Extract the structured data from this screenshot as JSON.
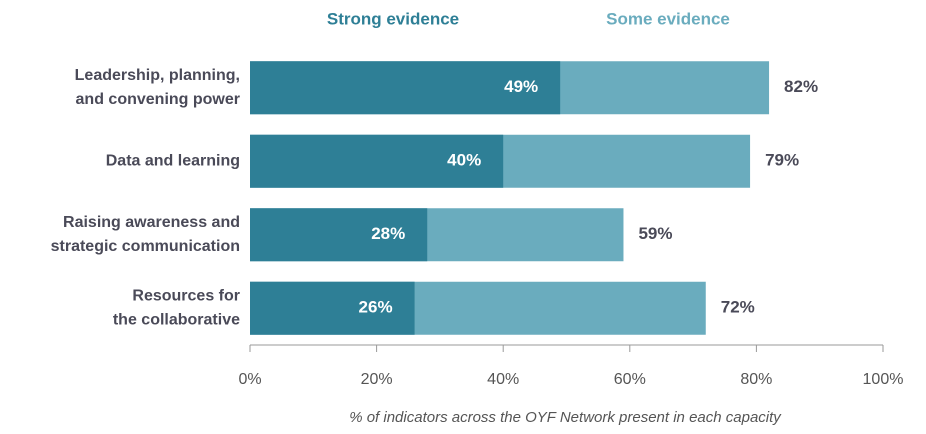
{
  "chart_data": {
    "type": "bar",
    "orientation": "horizontal",
    "overlap": true,
    "categories": [
      [
        "Leadership, planning,",
        "and convening power"
      ],
      [
        "Data and learning"
      ],
      [
        "Raising awareness and",
        "strategic communication"
      ],
      [
        "Resources for",
        "the collaborative"
      ]
    ],
    "series": [
      {
        "name": "Strong evidence",
        "color": "#2e7f96",
        "values": [
          49,
          40,
          28,
          26
        ],
        "value_labels": [
          "49%",
          "40%",
          "28%",
          "26%"
        ]
      },
      {
        "name": "Some evidence",
        "color": "#6aacbe",
        "values": [
          82,
          79,
          59,
          72
        ],
        "value_labels": [
          "82%",
          "79%",
          "59%",
          "72%"
        ]
      }
    ],
    "xlim": [
      0,
      100
    ],
    "xticks": [
      {
        "value": 0,
        "label": "0%"
      },
      {
        "value": 20,
        "label": "20%"
      },
      {
        "value": 40,
        "label": "40%"
      },
      {
        "value": 60,
        "label": "60%"
      },
      {
        "value": 80,
        "label": "80%"
      },
      {
        "value": 100,
        "label": "100%"
      }
    ],
    "xlabel": "% of indicators across the OYF Network present in each capacity",
    "legend": "top"
  }
}
